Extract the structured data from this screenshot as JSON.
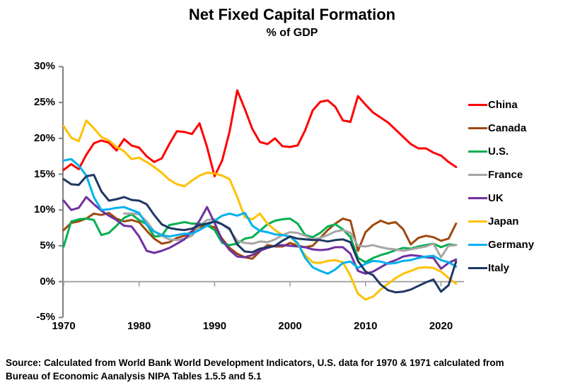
{
  "title": "Net Fixed Capital Formation",
  "subtitle": "% of GDP",
  "source_line1": "Source:  Calculated from World Bank World Development Indicators, U.S. data for 1970 & 1971 calculated from",
  "source_line2": "Bureau of Economic Aanalysis NIPA Tables 1.5.5 and 5.1",
  "chart_data": {
    "type": "line",
    "title": "Net Fixed Capital Formation",
    "subtitle": "% of GDP",
    "xlabel": "",
    "ylabel": "",
    "x_start_year": 1970,
    "x_end_year": 2022,
    "xlim": [
      1970,
      2022
    ],
    "ylim": [
      -5,
      30
    ],
    "grid": "zero-line-only",
    "legend_position": "right",
    "axis_color": "#7f7f7f",
    "zero_line_color": "#9a9a9a",
    "y_tick_labels": [
      "30%",
      "25%",
      "20%",
      "15%",
      "10%",
      "5%",
      "0%",
      "-5%"
    ],
    "y_tick_values": [
      30,
      25,
      20,
      15,
      10,
      5,
      0,
      -5
    ],
    "x_tick_labels": [
      "1970",
      "1980",
      "1990",
      "2000",
      "2010",
      "2020"
    ],
    "x_tick_years": [
      1970,
      1980,
      1990,
      2000,
      2010,
      2020
    ],
    "years": "annual 1970-2022",
    "series": [
      {
        "name": "China",
        "color": "#ff0000",
        "values": [
          15.6,
          16.4,
          15.7,
          17.7,
          19.3,
          19.7,
          19.4,
          18.3,
          19.9,
          19.0,
          18.7,
          17.5,
          16.7,
          17.2,
          19.2,
          21.0,
          20.9,
          20.6,
          22.1,
          18.8,
          14.7,
          16.9,
          21.0,
          26.7,
          24.1,
          21.3,
          19.5,
          19.2,
          20.0,
          18.9,
          18.8,
          19.0,
          21.1,
          23.9,
          25.1,
          25.3,
          24.4,
          22.5,
          22.3,
          25.9,
          24.7,
          23.6,
          22.9,
          22.2,
          21.2,
          20.2,
          19.2,
          18.6,
          18.6,
          18.0,
          17.6,
          16.7,
          16.0
        ]
      },
      {
        "name": "Canada",
        "color": "#9e480e",
        "values": [
          7.2,
          8.2,
          8.4,
          8.8,
          9.5,
          9.3,
          9.6,
          8.8,
          8.4,
          8.6,
          8.3,
          7.1,
          6.0,
          5.3,
          5.5,
          6.1,
          6.4,
          7.0,
          7.6,
          7.8,
          7.6,
          6.0,
          4.7,
          3.9,
          3.4,
          3.2,
          4.2,
          5.1,
          4.9,
          4.9,
          5.4,
          5.0,
          4.8,
          5.0,
          6.1,
          7.2,
          8.1,
          8.8,
          8.5,
          4.3,
          6.9,
          7.9,
          8.5,
          8.1,
          8.3,
          7.3,
          5.2,
          6.1,
          6.4,
          6.2,
          5.7,
          6.0,
          8.1
        ]
      },
      {
        "name": "U.S.",
        "color": "#00b050",
        "values": [
          4.9,
          8.4,
          8.7,
          8.8,
          8.6,
          6.5,
          6.8,
          7.8,
          8.9,
          9.4,
          8.6,
          8.0,
          6.3,
          6.4,
          7.9,
          8.1,
          8.3,
          8.1,
          8.1,
          7.9,
          7.2,
          5.4,
          5.1,
          5.3,
          6.0,
          6.2,
          7.1,
          8.0,
          8.5,
          8.7,
          8.8,
          8.1,
          6.5,
          6.2,
          6.8,
          7.7,
          8.0,
          7.3,
          6.2,
          3.3,
          2.7,
          3.3,
          3.7,
          4.0,
          4.4,
          4.7,
          4.6,
          4.9,
          5.1,
          5.3,
          4.8,
          5.2,
          5.1
        ]
      },
      {
        "name": "France",
        "color": "#a6a6a6",
        "values": [
          null,
          null,
          null,
          null,
          null,
          null,
          null,
          null,
          9.5,
          9.5,
          9.4,
          8.4,
          7.0,
          6.4,
          5.9,
          5.8,
          6.0,
          6.4,
          7.8,
          8.6,
          8.7,
          8.0,
          7.2,
          5.7,
          5.4,
          5.3,
          5.6,
          5.5,
          5.9,
          6.5,
          6.9,
          6.8,
          6.4,
          5.9,
          6.1,
          6.5,
          7.0,
          7.2,
          6.8,
          5.0,
          4.9,
          5.1,
          4.8,
          4.6,
          4.5,
          4.3,
          4.5,
          4.7,
          4.9,
          5.3,
          3.4,
          5.0,
          5.1
        ]
      },
      {
        "name": "UK",
        "color": "#7030a0",
        "values": [
          11.3,
          10.0,
          10.3,
          11.8,
          10.8,
          9.9,
          9.2,
          8.6,
          7.8,
          7.7,
          6.3,
          4.3,
          4.0,
          4.3,
          4.7,
          5.3,
          5.9,
          7.0,
          8.5,
          10.4,
          8.2,
          5.8,
          4.4,
          3.5,
          3.4,
          3.7,
          4.3,
          4.7,
          5.0,
          5.1,
          5.0,
          4.9,
          4.8,
          4.5,
          4.4,
          4.5,
          4.8,
          4.8,
          3.9,
          1.5,
          1.1,
          1.4,
          2.0,
          2.6,
          3.0,
          3.5,
          3.7,
          3.6,
          3.4,
          3.3,
          1.8,
          2.6,
          3.1
        ]
      },
      {
        "name": "Japan",
        "color": "#ffc000",
        "values": [
          21.7,
          20.1,
          19.6,
          22.5,
          21.4,
          20.2,
          19.7,
          18.8,
          18.2,
          17.1,
          17.3,
          16.7,
          16.0,
          15.2,
          14.2,
          13.6,
          13.3,
          14.1,
          14.8,
          15.2,
          15.1,
          14.8,
          14.3,
          11.8,
          9.0,
          8.7,
          9.5,
          8.1,
          7.2,
          6.5,
          6.3,
          5.2,
          3.7,
          2.7,
          2.6,
          2.9,
          3.0,
          2.7,
          0.8,
          -1.7,
          -2.5,
          -2.1,
          -1.1,
          -0.3,
          0.5,
          1.1,
          1.5,
          1.9,
          2.0,
          1.9,
          1.4,
          0.5,
          -0.3
        ]
      },
      {
        "name": "Germany",
        "color": "#00b0f0",
        "values": [
          16.9,
          17.1,
          16.2,
          14.8,
          11.8,
          10.0,
          10.1,
          10.3,
          10.4,
          10.0,
          9.6,
          7.9,
          7.0,
          6.5,
          6.3,
          6.5,
          6.7,
          6.7,
          7.2,
          7.8,
          8.5,
          9.2,
          9.5,
          9.2,
          9.6,
          7.8,
          7.1,
          6.9,
          6.6,
          6.5,
          6.3,
          5.4,
          3.3,
          2.0,
          1.5,
          1.1,
          1.7,
          2.6,
          2.8,
          1.9,
          2.5,
          2.9,
          2.8,
          2.5,
          2.6,
          2.9,
          3.0,
          3.3,
          3.5,
          3.6,
          3.0,
          2.7,
          2.1
        ]
      },
      {
        "name": "Italy",
        "color": "#1f3864",
        "values": [
          14.3,
          13.6,
          13.5,
          14.7,
          14.9,
          12.6,
          11.3,
          11.5,
          11.8,
          11.4,
          11.3,
          10.8,
          9.3,
          8.0,
          7.5,
          7.3,
          7.2,
          7.4,
          7.9,
          8.1,
          8.4,
          8.0,
          7.4,
          5.2,
          4.2,
          4.1,
          4.6,
          4.8,
          5.0,
          5.7,
          6.3,
          6.0,
          5.9,
          5.8,
          5.8,
          5.6,
          5.8,
          5.9,
          5.5,
          2.9,
          1.4,
          0.9,
          -0.4,
          -1.2,
          -1.5,
          -1.4,
          -1.1,
          -0.6,
          -0.1,
          0.3,
          -1.4,
          -0.5,
          2.8
        ]
      }
    ]
  }
}
